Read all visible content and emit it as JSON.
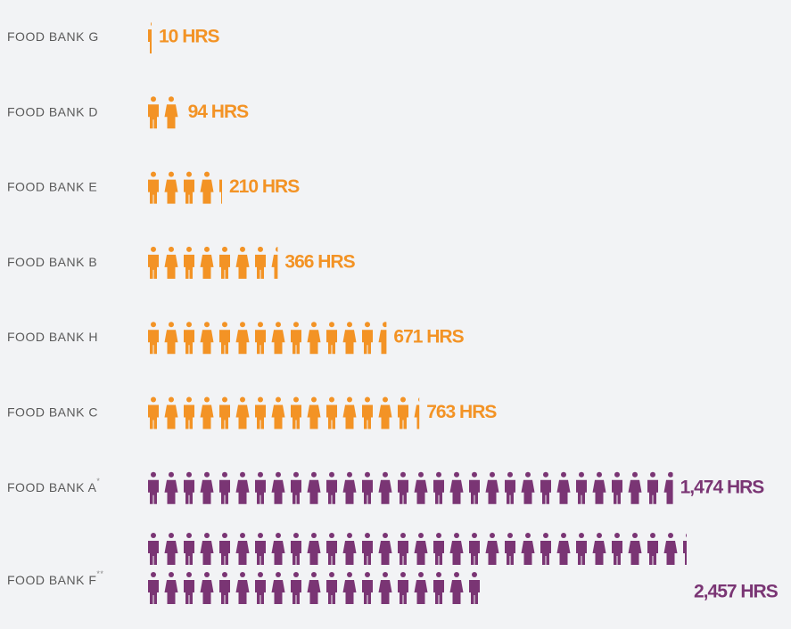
{
  "chart_data": {
    "type": "pictogram",
    "categories": [
      "FOOD BANK G",
      "FOOD BANK D",
      "FOOD BANK E",
      "FOOD BANK B",
      "FOOD BANK H",
      "FOOD BANK C",
      "FOOD BANK A",
      "FOOD BANK F"
    ],
    "category_notes": [
      null,
      null,
      null,
      null,
      null,
      null,
      "*",
      "**"
    ],
    "values": [
      10,
      94,
      210,
      366,
      671,
      763,
      1474,
      2457
    ],
    "value_labels": [
      "10 HRS",
      "94 HRS",
      "210 HRS",
      "366 HRS",
      "671 HRS",
      "763 HRS",
      "1,474 HRS",
      "2,457 HRS"
    ],
    "colors": [
      "#f39325",
      "#f39325",
      "#f39325",
      "#f39325",
      "#f39325",
      "#f39325",
      "#7a3574",
      "#7a3574"
    ]
  }
}
